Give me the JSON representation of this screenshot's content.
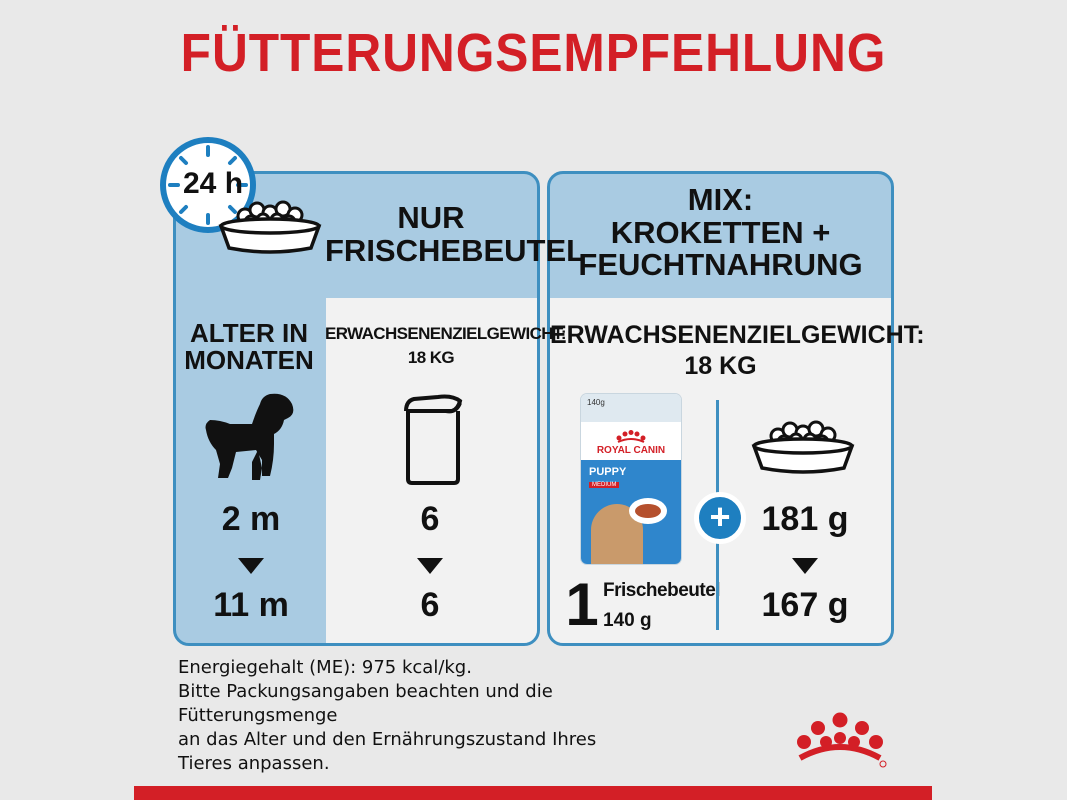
{
  "title": "FÜTTERUNGSEMPFEHLUNG",
  "clock": {
    "label": "24 h",
    "icon": "clock-icon"
  },
  "left_panel": {
    "heading_line1": "NUR",
    "heading_line2": "FRISCHEBEUTEL",
    "age_label_line1": "ALTER IN",
    "age_label_line2": "MONATEN",
    "weight_label_line1": "ERWACHSENENZIELGEWICHT:",
    "weight_label_line2": "18 KG",
    "age_start": "2 m",
    "age_end": "11 m",
    "pouches_start": "6",
    "pouches_end": "6"
  },
  "right_panel": {
    "heading_line1": "MIX:",
    "heading_line2": "KROKETTEN +",
    "heading_line3": "FEUCHTNAHRUNG",
    "weight_label_line1": "ERWACHSENENZIELGEWICHT:",
    "weight_label_line2": "18 KG",
    "pouch_count": "1",
    "pouch_label": "Frischebeutel",
    "pouch_weight": "140 g",
    "kibble_start": "181 g",
    "kibble_end": "167 g",
    "plus": "+"
  },
  "pouch_image": {
    "weight": "140g",
    "brand": "ROYAL CANIN",
    "product": "PUPPY",
    "size": "MEDIUM"
  },
  "info_lines": [
    "Energiegehalt (ME): 975 kcal/kg.",
    "Bitte Packungsangaben beachten und die",
    "Fütterungsmenge",
    "an das Alter und den Ernährungszustand Ihres",
    "Tieres anpassen."
  ],
  "colors": {
    "accent_red": "#d31f26",
    "panel_blue": "#a9cbe2",
    "border_blue": "#3e8fc0",
    "dark_blue": "#1e7fc0"
  }
}
